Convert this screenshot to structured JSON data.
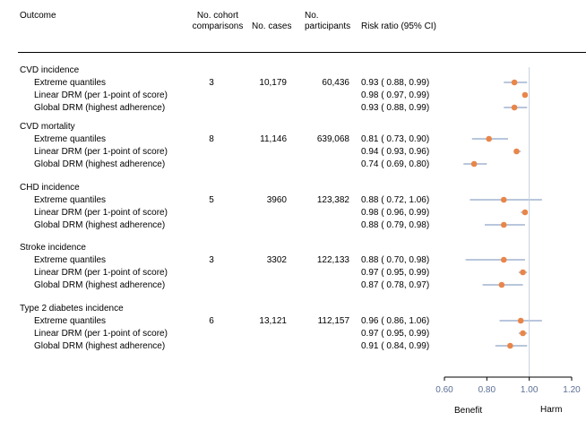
{
  "headers": {
    "outcome": "Outcome",
    "comparisons": [
      "No. cohort",
      "comparisons"
    ],
    "cases": "No. cases",
    "participants": [
      "No.",
      "participants"
    ],
    "rr": "Risk ratio (95% CI)"
  },
  "footer": {
    "benefit": "Benefit",
    "harm": "Harm"
  },
  "colors": {
    "marker": "#e8864a",
    "ci": "#8ea3c6",
    "axis": "#000000",
    "refline": "#c5cfe0",
    "tick_label": "#5a6f95"
  },
  "chart_data": {
    "type": "forest",
    "x_axis": {
      "ticks": [
        0.6,
        0.8,
        1.0,
        1.2
      ],
      "tick_labels": [
        "0.60",
        "0.80",
        "1.00",
        "1.20"
      ],
      "range": [
        0.6,
        1.2
      ],
      "reference": 1.0
    },
    "groups": [
      {
        "name": "CVD incidence",
        "comparisons": "3",
        "cases": "10,179",
        "participants": "60,436",
        "rows": [
          {
            "label": "Extreme quantiles",
            "rr_text": "0.93 ( 0.88, 0.99)",
            "est": 0.93,
            "lo": 0.88,
            "hi": 0.99
          },
          {
            "label": "Linear DRM (per 1-point of score)",
            "rr_text": "0.98 ( 0.97, 0.99)",
            "est": 0.98,
            "lo": 0.97,
            "hi": 0.99
          },
          {
            "label": "Global DRM (highest adherence)",
            "rr_text": "0.93 ( 0.88, 0.99)",
            "est": 0.93,
            "lo": 0.88,
            "hi": 0.99
          }
        ]
      },
      {
        "name": "CVD mortality",
        "comparisons": "8",
        "cases": "11,146",
        "participants": "639,068",
        "rows": [
          {
            "label": "Extreme quantiles",
            "rr_text": "0.81 ( 0.73, 0.90)",
            "est": 0.81,
            "lo": 0.73,
            "hi": 0.9
          },
          {
            "label": "Linear DRM (per 1-point of score)",
            "rr_text": "0.94 ( 0.93, 0.96)",
            "est": 0.94,
            "lo": 0.93,
            "hi": 0.96
          },
          {
            "label": "Global DRM (highest adherence)",
            "rr_text": "0.74 ( 0.69, 0.80)",
            "est": 0.74,
            "lo": 0.69,
            "hi": 0.8
          }
        ]
      },
      {
        "name": "CHD incidence",
        "comparisons": "5",
        "cases": "3960",
        "participants": "123,382",
        "rows": [
          {
            "label": "Extreme quantiles",
            "rr_text": "0.88 ( 0.72, 1.06)",
            "est": 0.88,
            "lo": 0.72,
            "hi": 1.06
          },
          {
            "label": "Linear DRM (per 1-point of score)",
            "rr_text": "0.98 ( 0.96, 0.99)",
            "est": 0.98,
            "lo": 0.96,
            "hi": 0.99
          },
          {
            "label": "Global DRM (highest adherence)",
            "rr_text": "0.88 ( 0.79, 0.98)",
            "est": 0.88,
            "lo": 0.79,
            "hi": 0.98
          }
        ]
      },
      {
        "name": "Stroke incidence",
        "comparisons": "3",
        "cases": "3302",
        "participants": "122,133",
        "rows": [
          {
            "label": "Extreme quantiles",
            "rr_text": "0.88 ( 0.70, 0.98)",
            "est": 0.88,
            "lo": 0.7,
            "hi": 0.98
          },
          {
            "label": "Linear DRM (per 1-point of score)",
            "rr_text": "0.97 ( 0.95, 0.99)",
            "est": 0.97,
            "lo": 0.95,
            "hi": 0.99
          },
          {
            "label": "Global DRM (highest adherence)",
            "rr_text": "0.87 ( 0.78, 0.97)",
            "est": 0.87,
            "lo": 0.78,
            "hi": 0.97
          }
        ]
      },
      {
        "name": "Type 2 diabetes incidence",
        "comparisons": "6",
        "cases": "13,121",
        "participants": "112,157",
        "rows": [
          {
            "label": "Extreme quantiles",
            "rr_text": "0.96 ( 0.86, 1.06)",
            "est": 0.96,
            "lo": 0.86,
            "hi": 1.06
          },
          {
            "label": "Linear DRM (per 1-point of score)",
            "rr_text": "0.97 ( 0.95, 0.99)",
            "est": 0.97,
            "lo": 0.95,
            "hi": 0.99
          },
          {
            "label": "Global DRM (highest adherence)",
            "rr_text": "0.91 ( 0.84, 0.99)",
            "est": 0.91,
            "lo": 0.84,
            "hi": 0.99
          }
        ]
      }
    ]
  }
}
